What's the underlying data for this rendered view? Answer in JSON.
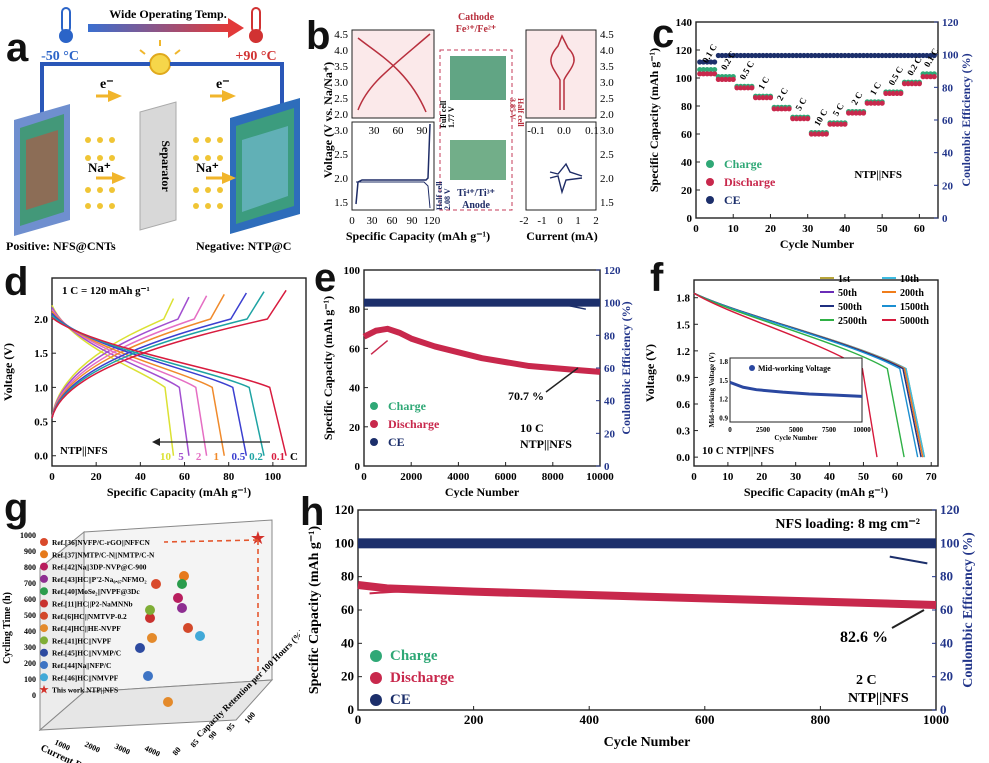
{
  "panels": {
    "a": {
      "label": "a",
      "banner": "Wide Operating Temp.",
      "temp_low": "-50 °C",
      "temp_high": "+90 °C",
      "electron": "e⁻",
      "sodium": "Na⁺",
      "separator": "Separator",
      "positive": "Positive: NFS@CNTs",
      "negative": "Negative: NTP@C"
    },
    "b": {
      "label": "b",
      "xlabel_left": "Specific Capacity (mAh g⁻¹)",
      "xlabel_right": "Current (mA)",
      "ylabel": "Voltage (V vs. Na/Na⁺)",
      "cathode": "Cathode",
      "cathode_couple": "Fe³⁺/Fe²⁺",
      "anode": "Anode",
      "anode_couple": "Ti⁴⁺/Ti³⁺",
      "half_cell_top": "Half cell",
      "half_cell_top_v": "3.85 V",
      "full_cell": "Full cell",
      "full_cell_v": "1.77 V",
      "half_cell_bottom": "Half cell",
      "half_cell_bottom_v": "2.08 V",
      "top_x_ticks": [
        "30",
        "60",
        "90"
      ],
      "bottom_x_ticks": [
        "0",
        "30",
        "60",
        "90",
        "120"
      ],
      "right_top_x_ticks": [
        "-0.1",
        "0.0",
        "0.1"
      ],
      "right_bottom_x_ticks": [
        "-2",
        "-1",
        "0",
        "1",
        "2"
      ],
      "top_y_ticks": [
        "4.5",
        "4.0",
        "3.5",
        "3.0",
        "2.5",
        "2.0"
      ],
      "bottom_y_ticks": [
        "3.0",
        "2.5",
        "2.0",
        "1.5"
      ]
    },
    "c": {
      "label": "c",
      "rate_labels": [
        "0.1 C",
        "0.2 C",
        "0.5 C",
        "1 C",
        "2 C",
        "5 C",
        "10 C",
        "5 C",
        "2 C",
        "1 C",
        "0.5 C",
        "0.2 C",
        "0.1 C"
      ],
      "annotation": "NTP||NFS"
    },
    "d": {
      "label": "d",
      "note": "1 C = 120 mAh g⁻¹",
      "annotation": "NTP||NFS",
      "rate_labels": [
        "10",
        "5",
        "2",
        "1",
        "0.5",
        "0.2",
        "0.1"
      ],
      "rate_unit": "C"
    },
    "e": {
      "label": "e",
      "retention": "70.7 %",
      "rate": "10 C",
      "annotation": "NTP||NFS"
    },
    "f": {
      "label": "f",
      "annotation": "10 C   NTP||NFS",
      "inset_ylabel": "Mid-working Voltage (V)",
      "inset_xlabel": "Cycle Number",
      "inset_legend": "Mid-working Voltage",
      "inset_x_ticks": [
        "0",
        "2500",
        "5000",
        "7500",
        "10000"
      ],
      "inset_y_ticks": [
        "1.8",
        "1.5",
        "1.2",
        "0.9"
      ]
    },
    "g": {
      "label": "g",
      "ylabel": "Cycling Time (h)",
      "xlabel": "Current Density (mA g⁻¹)",
      "zlabel": "Capacity Retention per 100 Hours (%)",
      "y_ticks": [
        "1000",
        "900",
        "800",
        "700",
        "600",
        "500",
        "400",
        "300",
        "200",
        "100",
        "0"
      ],
      "x_ticks": [
        "1000",
        "2000",
        "3000",
        "4000"
      ],
      "z_ticks": [
        "80",
        "85",
        "90",
        "95",
        "100"
      ],
      "legend": [
        {
          "text": "Ref.[36]NVFP/C-rGO||NFFCN",
          "color": "#d94a2c"
        },
        {
          "text": "Ref.[37]NMTP/C-N||NMTP/C-N",
          "color": "#e67a1c"
        },
        {
          "text": "Ref.[42]Na||3DP-NVP@C-900",
          "color": "#b81e5e"
        },
        {
          "text": "Ref.[43]HC||P'2-Na₀.₆₇NFMO₂",
          "color": "#8e2e91"
        },
        {
          "text": "Ref.[40]MoSe₂||NVPF@3Dc",
          "color": "#2a9c4c"
        },
        {
          "text": "Ref.[11]HC||P2-NaMNNb",
          "color": "#c9322f"
        },
        {
          "text": "Ref.[6]HC||NMTVP-0.2",
          "color": "#d3482a"
        },
        {
          "text": "Ref.[4]HC||HE-NVPF",
          "color": "#e48a2b"
        },
        {
          "text": "Ref.[41]HC||NVPF",
          "color": "#7fae36"
        },
        {
          "text": "Ref.[45]HC||NVMP/C",
          "color": "#2d4aa0"
        },
        {
          "text": "Ref.[44]Na||NFP/C",
          "color": "#3e74c4"
        },
        {
          "text": "Ref.[46]HC||NMVPF",
          "color": "#41a9d8"
        },
        {
          "text": "This work NTP||NFS",
          "color": "#d3312a"
        }
      ]
    },
    "h": {
      "label": "h",
      "loading": "NFS loading: 8 mg cm⁻²",
      "retention": "82.6 %",
      "rate": "2 C",
      "annotation": "NTP||NFS"
    }
  },
  "legends": {
    "charge": "Charge",
    "discharge": "Discharge",
    "ce": "CE"
  },
  "colors": {
    "charge": "#2fa876",
    "discharge": "#c8284c",
    "ce": "#1c2f6b",
    "axis_right": "#22358a"
  },
  "chart_data": [
    {
      "panel": "b",
      "type": "line",
      "xlabel": "Specific Capacity (mAh g⁻¹)",
      "ylabel": "Voltage (V vs. Na/Na⁺)",
      "series": [
        {
          "name": "Cathode charge",
          "x": [
            0,
            10,
            30,
            60,
            90,
            110,
            115
          ],
          "y": [
            2.1,
            3.0,
            3.5,
            3.8,
            4.1,
            4.3,
            4.5
          ]
        },
        {
          "name": "Cathode discharge",
          "x": [
            0,
            10,
            30,
            60,
            90,
            110,
            115
          ],
          "y": [
            4.4,
            4.1,
            3.8,
            3.6,
            3.3,
            2.8,
            2.0
          ]
        },
        {
          "name": "Anode",
          "x": [
            0,
            5,
            30,
            60,
            90,
            110,
            115
          ],
          "y": [
            1.95,
            2.12,
            2.14,
            2.14,
            2.14,
            2.2,
            3.0
          ]
        }
      ]
    },
    {
      "panel": "c",
      "type": "scatter",
      "xlabel": "Cycle Number",
      "ylabel": "Specific Capacity (mAh g⁻¹)",
      "y2label": "Coulombic Efficiency (%)",
      "xlim": [
        0,
        65
      ],
      "ylim": [
        0,
        140
      ],
      "y2lim": [
        0,
        120
      ],
      "x_ticks": [
        0,
        10,
        20,
        30,
        40,
        50,
        60
      ],
      "y_ticks": [
        0,
        20,
        40,
        60,
        80,
        100,
        120,
        140
      ],
      "y2_ticks": [
        0,
        20,
        40,
        60,
        80,
        100,
        120
      ],
      "steps": [
        {
          "rate": "0.1 C",
          "cycles": [
            1,
            5
          ],
          "charge": 106,
          "discharge": 103
        },
        {
          "rate": "0.2 C",
          "cycles": [
            6,
            10
          ],
          "charge": 101,
          "discharge": 99
        },
        {
          "rate": "0.5 C",
          "cycles": [
            11,
            15
          ],
          "charge": 94,
          "discharge": 93
        },
        {
          "rate": "1 C",
          "cycles": [
            16,
            20
          ],
          "charge": 87,
          "discharge": 86
        },
        {
          "rate": "2 C",
          "cycles": [
            21,
            25
          ],
          "charge": 79,
          "discharge": 78
        },
        {
          "rate": "5 C",
          "cycles": [
            26,
            30
          ],
          "charge": 72,
          "discharge": 71
        },
        {
          "rate": "10 C",
          "cycles": [
            31,
            35
          ],
          "charge": 61,
          "discharge": 60
        },
        {
          "rate": "5 C",
          "cycles": [
            36,
            40
          ],
          "charge": 68,
          "discharge": 67
        },
        {
          "rate": "2 C",
          "cycles": [
            41,
            45
          ],
          "charge": 76,
          "discharge": 75
        },
        {
          "rate": "1 C",
          "cycles": [
            46,
            50
          ],
          "charge": 83,
          "discharge": 82
        },
        {
          "rate": "0.5 C",
          "cycles": [
            51,
            55
          ],
          "charge": 90,
          "discharge": 89
        },
        {
          "rate": "0.2 C",
          "cycles": [
            56,
            60
          ],
          "charge": 97,
          "discharge": 96
        },
        {
          "rate": "0.1 C",
          "cycles": [
            61,
            64
          ],
          "charge": 103,
          "discharge": 101
        }
      ],
      "ce": 99.5
    },
    {
      "panel": "d",
      "type": "line",
      "xlabel": "Specific Capacity (mAh g⁻¹)",
      "ylabel": "Voltage (V)",
      "xlim": [
        0,
        115
      ],
      "ylim": [
        -0.15,
        2.6
      ],
      "x_ticks": [
        0,
        20,
        40,
        60,
        80,
        100
      ],
      "y_ticks": [
        0.0,
        0.5,
        1.0,
        1.5,
        2.0
      ],
      "series": [
        {
          "name": "10 C",
          "color": "#dbe133",
          "capacity": 55
        },
        {
          "name": "5 C",
          "color": "#a24fd0",
          "capacity": 62
        },
        {
          "name": "2 C",
          "color": "#e56ec3",
          "capacity": 70
        },
        {
          "name": "1 C",
          "color": "#f08a2b",
          "capacity": 78
        },
        {
          "name": "0.5 C",
          "color": "#3b3fd0",
          "capacity": 88
        },
        {
          "name": "0.2 C",
          "color": "#1ea3a3",
          "capacity": 96
        },
        {
          "name": "0.1 C",
          "color": "#d81b3e",
          "capacity": 106
        }
      ]
    },
    {
      "panel": "e",
      "type": "scatter",
      "xlabel": "Cycle Number",
      "ylabel": "Specific Capacity (mAh g⁻¹)",
      "y2label": "Coulombic Efficiency (%)",
      "xlim": [
        0,
        10000
      ],
      "ylim": [
        0,
        100
      ],
      "y2lim": [
        0,
        120
      ],
      "x_ticks": [
        0,
        2000,
        4000,
        6000,
        8000,
        10000
      ],
      "y_ticks": [
        0,
        20,
        40,
        60,
        80,
        100
      ],
      "y2_ticks": [
        0,
        20,
        40,
        60,
        80,
        100,
        120
      ],
      "capacity": {
        "x": [
          0,
          500,
          1000,
          1500,
          2000,
          3000,
          4000,
          5000,
          6000,
          7000,
          8000,
          9000,
          10000
        ],
        "y": [
          66,
          69,
          70,
          68,
          65,
          61,
          58,
          55,
          53,
          51,
          50,
          49,
          48
        ]
      },
      "ce": 100
    },
    {
      "panel": "f",
      "type": "line",
      "xlabel": "Specific Capacity (mAh g⁻¹)",
      "ylabel": "Voltage (V)",
      "xlim": [
        0,
        72
      ],
      "ylim": [
        -0.1,
        2.0
      ],
      "x_ticks": [
        0,
        10,
        20,
        30,
        40,
        50,
        60,
        70
      ],
      "y_ticks": [
        0.0,
        0.3,
        0.6,
        0.9,
        1.2,
        1.5,
        1.8
      ],
      "series": [
        {
          "name": "1st",
          "color": "#b8a53a",
          "capacity": 68
        },
        {
          "name": "10th",
          "color": "#3dbbe0",
          "capacity": 68
        },
        {
          "name": "50th",
          "color": "#6a2cb7",
          "capacity": 67.5
        },
        {
          "name": "200th",
          "color": "#f07d1b",
          "capacity": 67.5
        },
        {
          "name": "500th",
          "color": "#1f2f80",
          "capacity": 67
        },
        {
          "name": "1500th",
          "color": "#1b8fd1",
          "capacity": 66
        },
        {
          "name": "2500th",
          "color": "#2fb045",
          "capacity": 62
        },
        {
          "name": "5000th",
          "color": "#d61a3c",
          "capacity": 54
        }
      ],
      "inset": {
        "xlim": [
          0,
          10000
        ],
        "ylim": [
          0.8,
          1.85
        ],
        "x": [
          0,
          1000,
          2000,
          4000,
          6000,
          8000,
          10000
        ],
        "y": [
          1.45,
          1.37,
          1.33,
          1.29,
          1.26,
          1.24,
          1.22
        ]
      }
    },
    {
      "panel": "h",
      "type": "scatter",
      "xlabel": "Cycle Number",
      "ylabel": "Specific Capacity (mAh g⁻¹)",
      "y2label": "Coulombic Efficiency (%)",
      "xlim": [
        0,
        1000
      ],
      "ylim": [
        0,
        120
      ],
      "y2lim": [
        0,
        120
      ],
      "x_ticks": [
        0,
        200,
        400,
        600,
        800,
        1000
      ],
      "y_ticks": [
        0,
        20,
        40,
        60,
        80,
        100,
        120
      ],
      "y2_ticks": [
        0,
        20,
        40,
        60,
        80,
        100,
        120
      ],
      "capacity": {
        "x": [
          0,
          50,
          200,
          400,
          600,
          800,
          1000
        ],
        "y": [
          75,
          73,
          71,
          69,
          67,
          65,
          63
        ]
      },
      "ce": 100
    }
  ]
}
